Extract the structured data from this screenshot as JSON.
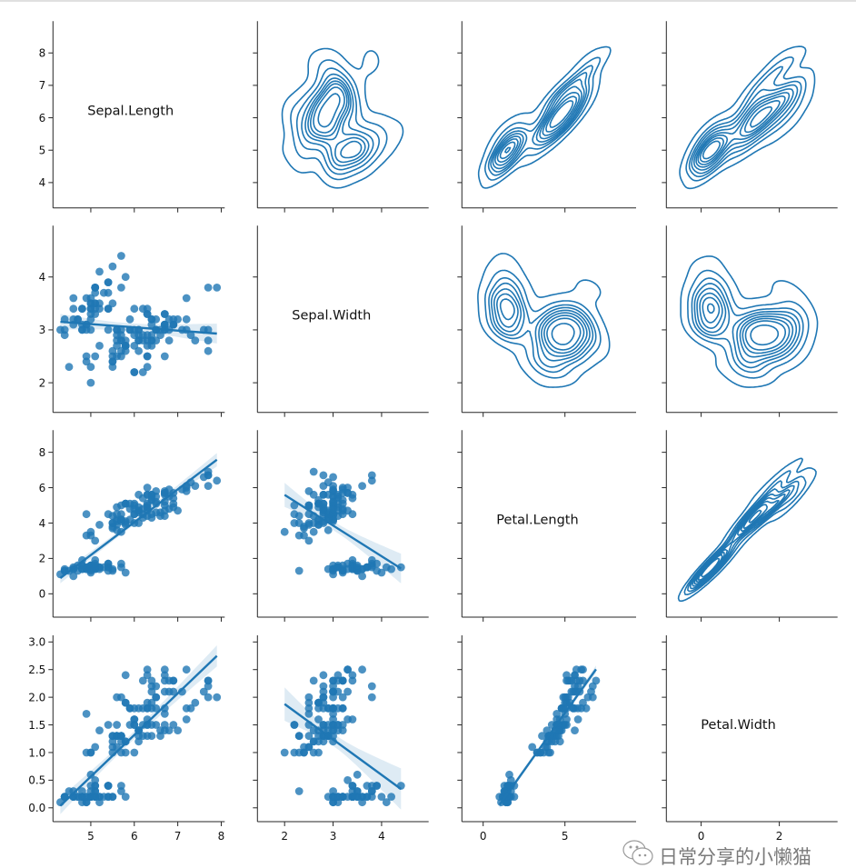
{
  "chart_data": {
    "type": "pairplot",
    "upper": "kde",
    "lower": "regression-scatter",
    "diagonal": "variable-name",
    "color": "#1f77b4",
    "grid": false,
    "variables": [
      {
        "name": "Sepal.Length",
        "col_limits": [
          4.13,
          8.08
        ],
        "row_limits": [
          3.22,
          8.98
        ],
        "col_ticks": [
          5,
          6,
          7,
          8
        ],
        "col_tick_labels": [
          "5",
          "6",
          "7",
          "8"
        ],
        "row_ticks": [
          4,
          5,
          6,
          7,
          8
        ],
        "row_tick_labels": [
          "4",
          "5",
          "6",
          "7",
          "8"
        ],
        "values": [
          5.1,
          4.9,
          4.7,
          4.6,
          5.0,
          5.4,
          4.6,
          5.0,
          4.4,
          4.9,
          5.4,
          4.8,
          4.8,
          4.3,
          5.8,
          5.7,
          5.4,
          5.1,
          5.7,
          5.1,
          5.4,
          5.1,
          4.6,
          5.1,
          4.8,
          5.0,
          5.0,
          5.2,
          5.2,
          4.7,
          4.8,
          5.4,
          5.2,
          5.5,
          4.9,
          5.0,
          5.5,
          4.9,
          4.4,
          5.1,
          5.0,
          4.5,
          4.4,
          5.0,
          5.1,
          4.8,
          5.1,
          4.6,
          5.3,
          5.0,
          7.0,
          6.4,
          6.9,
          5.5,
          6.5,
          5.7,
          6.3,
          4.9,
          6.6,
          5.2,
          5.0,
          5.9,
          6.0,
          6.1,
          5.6,
          6.7,
          5.6,
          5.8,
          6.2,
          5.6,
          5.9,
          6.1,
          6.3,
          6.1,
          6.4,
          6.6,
          6.8,
          6.7,
          6.0,
          5.7,
          5.5,
          5.5,
          5.8,
          6.0,
          5.4,
          6.0,
          6.7,
          6.3,
          5.6,
          5.5,
          5.5,
          6.1,
          5.8,
          5.0,
          5.6,
          5.7,
          5.7,
          6.2,
          5.1,
          5.7,
          6.3,
          5.8,
          7.1,
          6.3,
          6.5,
          7.6,
          4.9,
          7.3,
          6.7,
          7.2,
          6.5,
          6.4,
          6.8,
          5.7,
          5.8,
          6.4,
          6.5,
          7.7,
          7.7,
          6.0,
          6.9,
          5.6,
          7.7,
          6.3,
          6.7,
          7.2,
          6.2,
          6.1,
          6.4,
          7.2,
          7.4,
          7.9,
          6.4,
          6.3,
          6.1,
          7.7,
          6.3,
          6.4,
          6.0,
          6.9,
          6.7,
          6.9,
          5.8,
          6.8,
          6.7,
          6.7,
          6.3,
          6.5,
          6.2,
          5.9
        ]
      },
      {
        "name": "Sepal.Width",
        "col_limits": [
          1.44,
          4.97
        ],
        "row_limits": [
          1.44,
          4.97
        ],
        "col_ticks": [
          2,
          3,
          4
        ],
        "col_tick_labels": [
          "2",
          "3",
          "4"
        ],
        "row_ticks": [
          2,
          3,
          4
        ],
        "row_tick_labels": [
          "2",
          "3",
          "4"
        ],
        "values": [
          3.5,
          3.0,
          3.2,
          3.1,
          3.6,
          3.9,
          3.4,
          3.4,
          2.9,
          3.1,
          3.7,
          3.4,
          3.0,
          3.0,
          4.0,
          4.4,
          3.9,
          3.5,
          3.8,
          3.8,
          3.4,
          3.7,
          3.6,
          3.3,
          3.4,
          3.0,
          3.4,
          3.5,
          3.4,
          3.2,
          3.1,
          3.4,
          4.1,
          4.2,
          3.1,
          3.2,
          3.5,
          3.6,
          3.0,
          3.4,
          3.5,
          2.3,
          3.2,
          3.5,
          3.8,
          3.0,
          3.8,
          3.2,
          3.7,
          3.3,
          3.2,
          3.2,
          3.1,
          2.3,
          2.8,
          2.8,
          3.3,
          2.4,
          2.9,
          2.7,
          2.0,
          3.0,
          2.2,
          2.9,
          2.9,
          3.1,
          3.0,
          2.7,
          2.2,
          2.5,
          3.2,
          2.8,
          2.5,
          2.8,
          2.9,
          3.0,
          2.8,
          3.0,
          2.9,
          2.6,
          2.4,
          2.4,
          2.7,
          2.7,
          3.0,
          3.4,
          3.1,
          2.3,
          3.0,
          2.5,
          2.6,
          3.0,
          2.6,
          2.3,
          2.7,
          3.0,
          2.9,
          2.9,
          2.5,
          2.8,
          3.3,
          2.7,
          3.0,
          2.9,
          3.0,
          3.0,
          2.5,
          2.9,
          2.5,
          3.6,
          3.2,
          2.7,
          3.0,
          2.5,
          2.8,
          3.2,
          3.0,
          3.8,
          2.6,
          2.2,
          3.2,
          2.8,
          2.8,
          2.7,
          3.3,
          3.2,
          2.8,
          3.0,
          2.8,
          3.0,
          2.8,
          3.8,
          2.8,
          2.8,
          2.6,
          3.0,
          3.4,
          3.1,
          3.0,
          3.1,
          3.1,
          3.1,
          2.7,
          3.2,
          3.3,
          3.0,
          2.5,
          3.0,
          3.4,
          3.0
        ]
      },
      {
        "name": "Petal.Length",
        "col_limits": [
          -1.3,
          9.35
        ],
        "row_limits": [
          -1.32,
          9.25
        ],
        "col_ticks": [
          0,
          5
        ],
        "col_tick_labels": [
          "0",
          "5"
        ],
        "row_ticks": [
          0,
          2,
          4,
          6,
          8
        ],
        "row_tick_labels": [
          "0",
          "2",
          "4",
          "6",
          "8"
        ],
        "values": [
          1.4,
          1.4,
          1.3,
          1.5,
          1.4,
          1.7,
          1.4,
          1.5,
          1.4,
          1.5,
          1.5,
          1.6,
          1.4,
          1.1,
          1.2,
          1.5,
          1.3,
          1.4,
          1.7,
          1.5,
          1.7,
          1.5,
          1.0,
          1.7,
          1.9,
          1.6,
          1.6,
          1.5,
          1.4,
          1.6,
          1.6,
          1.5,
          1.5,
          1.4,
          1.5,
          1.2,
          1.3,
          1.4,
          1.3,
          1.5,
          1.3,
          1.3,
          1.3,
          1.6,
          1.9,
          1.4,
          1.6,
          1.4,
          1.5,
          1.4,
          4.7,
          4.5,
          4.9,
          4.0,
          4.6,
          4.5,
          4.7,
          3.3,
          4.6,
          3.9,
          3.5,
          4.2,
          4.0,
          4.7,
          3.6,
          4.4,
          4.5,
          4.1,
          4.5,
          3.9,
          4.8,
          4.0,
          4.9,
          4.7,
          4.3,
          4.4,
          4.8,
          5.0,
          4.5,
          3.5,
          3.8,
          3.7,
          3.9,
          5.1,
          4.5,
          4.5,
          4.7,
          4.4,
          4.1,
          4.0,
          4.4,
          4.6,
          4.0,
          3.3,
          4.2,
          4.2,
          4.2,
          4.3,
          3.0,
          4.1,
          6.0,
          5.1,
          5.9,
          5.6,
          5.8,
          6.6,
          4.5,
          6.3,
          5.8,
          6.1,
          5.1,
          5.3,
          5.5,
          5.0,
          5.1,
          5.3,
          5.5,
          6.7,
          6.9,
          5.0,
          5.7,
          4.9,
          6.7,
          4.9,
          5.7,
          6.0,
          4.8,
          4.9,
          5.6,
          5.8,
          6.1,
          6.4,
          5.6,
          5.1,
          5.6,
          6.1,
          5.6,
          5.5,
          4.8,
          5.4,
          5.6,
          5.1,
          5.1,
          5.9,
          5.7,
          5.2,
          5.0,
          5.2,
          5.4,
          5.1
        ]
      },
      {
        "name": "Petal.Width",
        "col_limits": [
          -0.89,
          3.49
        ],
        "row_limits": [
          -0.25,
          3.12
        ],
        "col_ticks": [
          0,
          2
        ],
        "col_tick_labels": [
          "0",
          "2"
        ],
        "row_ticks": [
          0,
          0.5,
          1,
          1.5,
          2,
          2.5,
          3
        ],
        "row_tick_labels": [
          "0.0",
          "0.5",
          "1.0",
          "1.5",
          "2.0",
          "2.5",
          "3.0"
        ],
        "values": [
          0.2,
          0.2,
          0.2,
          0.2,
          0.2,
          0.4,
          0.3,
          0.2,
          0.2,
          0.1,
          0.2,
          0.2,
          0.1,
          0.1,
          0.2,
          0.4,
          0.4,
          0.3,
          0.3,
          0.3,
          0.2,
          0.4,
          0.2,
          0.5,
          0.2,
          0.2,
          0.4,
          0.2,
          0.2,
          0.2,
          0.2,
          0.4,
          0.1,
          0.2,
          0.2,
          0.2,
          0.2,
          0.1,
          0.2,
          0.2,
          0.3,
          0.3,
          0.2,
          0.6,
          0.4,
          0.3,
          0.2,
          0.2,
          0.2,
          0.2,
          1.4,
          1.5,
          1.5,
          1.3,
          1.5,
          1.3,
          1.6,
          1.0,
          1.3,
          1.4,
          1.0,
          1.5,
          1.0,
          1.4,
          1.3,
          1.4,
          1.5,
          1.0,
          1.5,
          1.1,
          1.8,
          1.3,
          1.5,
          1.2,
          1.3,
          1.4,
          1.4,
          1.7,
          1.5,
          1.0,
          1.1,
          1.0,
          1.2,
          1.6,
          1.5,
          1.6,
          1.5,
          1.3,
          1.3,
          1.3,
          1.2,
          1.4,
          1.2,
          1.0,
          1.3,
          1.2,
          1.3,
          1.3,
          1.1,
          1.3,
          2.5,
          1.9,
          2.1,
          1.8,
          2.2,
          2.1,
          1.7,
          1.8,
          1.8,
          2.5,
          2.0,
          1.9,
          2.1,
          2.0,
          2.4,
          2.3,
          1.8,
          2.2,
          2.3,
          1.5,
          2.3,
          2.0,
          2.0,
          1.8,
          2.1,
          1.8,
          1.8,
          1.8,
          2.1,
          1.6,
          1.9,
          2.0,
          2.2,
          1.5,
          1.4,
          2.3,
          2.4,
          1.8,
          1.8,
          2.1,
          2.4,
          2.3,
          1.9,
          2.3,
          2.5,
          2.3,
          1.9,
          2.0,
          2.3,
          1.8
        ]
      }
    ]
  },
  "watermark": {
    "icon": "wechat-icon",
    "text": "日常分享的小懒猫"
  }
}
